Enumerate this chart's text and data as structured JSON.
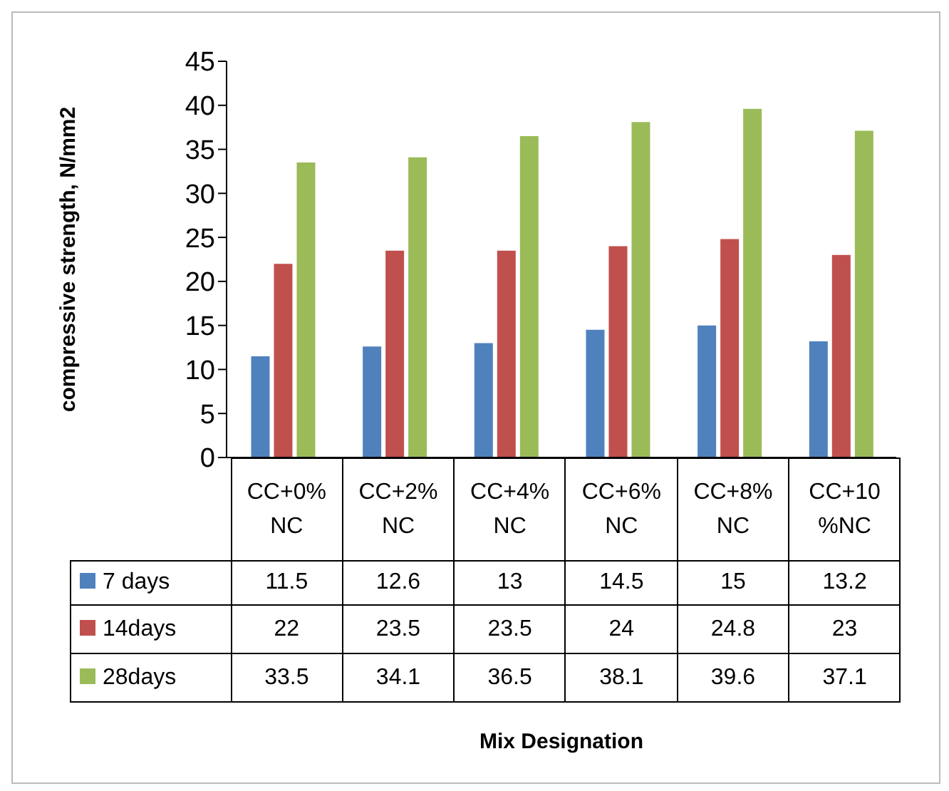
{
  "chart_data": {
    "type": "bar",
    "ylabel": "compressive strength, N/mm2",
    "annotations": [
      "Mix Designation"
    ],
    "categories": [
      "CC+0% NC",
      "CC+2% NC",
      "CC+4% NC",
      "CC+6% NC",
      "CC+8% NC",
      "CC+10 %NC"
    ],
    "series": [
      {
        "name": "7 days",
        "color": "#4f81bd",
        "values": [
          11.5,
          12.6,
          13,
          14.5,
          15,
          13.2
        ]
      },
      {
        "name": "14days",
        "color": "#c0504d",
        "values": [
          22,
          23.5,
          23.5,
          24,
          24.8,
          23
        ]
      },
      {
        "name": "28days",
        "color": "#9bbb59",
        "values": [
          33.5,
          34.1,
          36.5,
          38.1,
          39.6,
          37.1
        ]
      }
    ],
    "ylim": [
      0,
      45
    ],
    "yticks": [
      0,
      5,
      10,
      15,
      20,
      25,
      30,
      35,
      40,
      45
    ],
    "grid": false,
    "legend": "bottom",
    "data_labels": true
  }
}
